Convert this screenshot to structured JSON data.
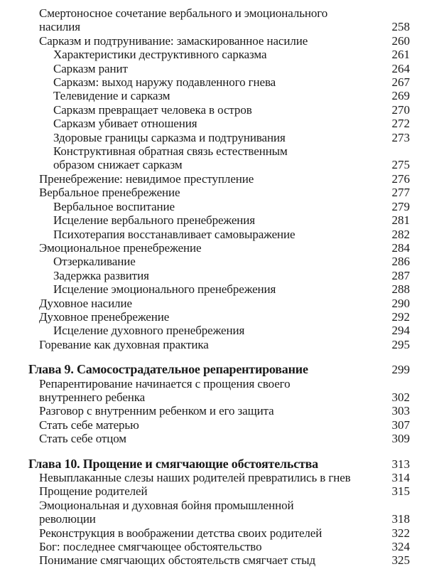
{
  "page": {
    "background": "#ffffff",
    "text_color": "#1a1a1a",
    "language": "ru",
    "kind": "book-table-of-contents"
  },
  "toc": {
    "entries": [
      {
        "level": 1,
        "chapter": false,
        "lines": [
          "Смертоносное сочетание вербального и эмоционального",
          "насилия"
        ],
        "page": "258"
      },
      {
        "level": 1,
        "chapter": false,
        "lines": [
          "Сарказм и подтрунивание: замаскированное насилие"
        ],
        "page": "260"
      },
      {
        "level": 2,
        "chapter": false,
        "lines": [
          "Характеристики деструктивного сарказма"
        ],
        "page": "261"
      },
      {
        "level": 2,
        "chapter": false,
        "lines": [
          "Сарказм ранит"
        ],
        "page": "264"
      },
      {
        "level": 2,
        "chapter": false,
        "lines": [
          "Сарказм: выход наружу подавленного гнева"
        ],
        "page": "267"
      },
      {
        "level": 2,
        "chapter": false,
        "lines": [
          "Телевидение и сарказм"
        ],
        "page": "269"
      },
      {
        "level": 2,
        "chapter": false,
        "lines": [
          "Сарказм превращает человека в остров"
        ],
        "page": "270"
      },
      {
        "level": 2,
        "chapter": false,
        "lines": [
          "Сарказм убивает отношения"
        ],
        "page": "272"
      },
      {
        "level": 2,
        "chapter": false,
        "lines": [
          "Здоровые границы сарказма и подтрунивания"
        ],
        "page": "273"
      },
      {
        "level": 2,
        "chapter": false,
        "lines": [
          "Конструктивная обратная связь естественным",
          "образом снижает сарказм"
        ],
        "page": "275"
      },
      {
        "level": 1,
        "chapter": false,
        "lines": [
          "Пренебрежение: невидимое преступление"
        ],
        "page": "276"
      },
      {
        "level": 1,
        "chapter": false,
        "lines": [
          "Вербальное пренебрежение"
        ],
        "page": "277"
      },
      {
        "level": 2,
        "chapter": false,
        "lines": [
          "Вербальное воспитание"
        ],
        "page": "279"
      },
      {
        "level": 2,
        "chapter": false,
        "lines": [
          "Исцеление вербального пренебрежения"
        ],
        "page": "281"
      },
      {
        "level": 2,
        "chapter": false,
        "lines": [
          "Психотерапия восстанавливает самовыражение"
        ],
        "page": "282"
      },
      {
        "level": 1,
        "chapter": false,
        "lines": [
          "Эмоциональное пренебрежение"
        ],
        "page": "284"
      },
      {
        "level": 2,
        "chapter": false,
        "lines": [
          "Отзеркаливание"
        ],
        "page": "286"
      },
      {
        "level": 2,
        "chapter": false,
        "lines": [
          "Задержка развития"
        ],
        "page": "287"
      },
      {
        "level": 2,
        "chapter": false,
        "lines": [
          "Исцеление эмоционального пренебрежения"
        ],
        "page": "288"
      },
      {
        "level": 1,
        "chapter": false,
        "lines": [
          "Духовное насилие"
        ],
        "page": "290"
      },
      {
        "level": 1,
        "chapter": false,
        "lines": [
          "Духовное пренебрежение"
        ],
        "page": "292"
      },
      {
        "level": 2,
        "chapter": false,
        "lines": [
          "Исцеление духовного пренебрежения"
        ],
        "page": "294"
      },
      {
        "level": 1,
        "chapter": false,
        "lines": [
          "Горевание как духовная практика"
        ],
        "page": "295"
      },
      {
        "level": 0,
        "chapter": true,
        "lines": [
          "Глава 9. Самосострадательное репарентирование"
        ],
        "page": "299"
      },
      {
        "level": 1,
        "chapter": false,
        "lines": [
          "Репарентирование начинается с прощения своего",
          "внутреннего ребенка"
        ],
        "page": "302"
      },
      {
        "level": 1,
        "chapter": false,
        "lines": [
          "Разговор с внутренним ребенком и его защита"
        ],
        "page": "303"
      },
      {
        "level": 1,
        "chapter": false,
        "lines": [
          "Стать себе матерью"
        ],
        "page": "307"
      },
      {
        "level": 1,
        "chapter": false,
        "lines": [
          "Стать себе отцом"
        ],
        "page": "309"
      },
      {
        "level": 0,
        "chapter": true,
        "lines": [
          "Глава 10. Прощение и смягчающие обстоятельства"
        ],
        "page": "313"
      },
      {
        "level": 1,
        "chapter": false,
        "lines": [
          "Невыплаканные слезы наших родителей превратились в гнев"
        ],
        "page": "314"
      },
      {
        "level": 1,
        "chapter": false,
        "lines": [
          "Прощение родителей"
        ],
        "page": "315"
      },
      {
        "level": 1,
        "chapter": false,
        "lines": [
          "Эмоциональная и духовная бойня промышленной",
          "революции"
        ],
        "page": "318"
      },
      {
        "level": 1,
        "chapter": false,
        "lines": [
          "Реконструкция в воображении детства своих родителей"
        ],
        "page": "322"
      },
      {
        "level": 1,
        "chapter": false,
        "lines": [
          "Бог: последнее смягчающее обстоятельство"
        ],
        "page": "324"
      },
      {
        "level": 1,
        "chapter": false,
        "lines": [
          "Понимание смягчающих обстоятельств смягчает стыд"
        ],
        "page": "325"
      }
    ]
  }
}
